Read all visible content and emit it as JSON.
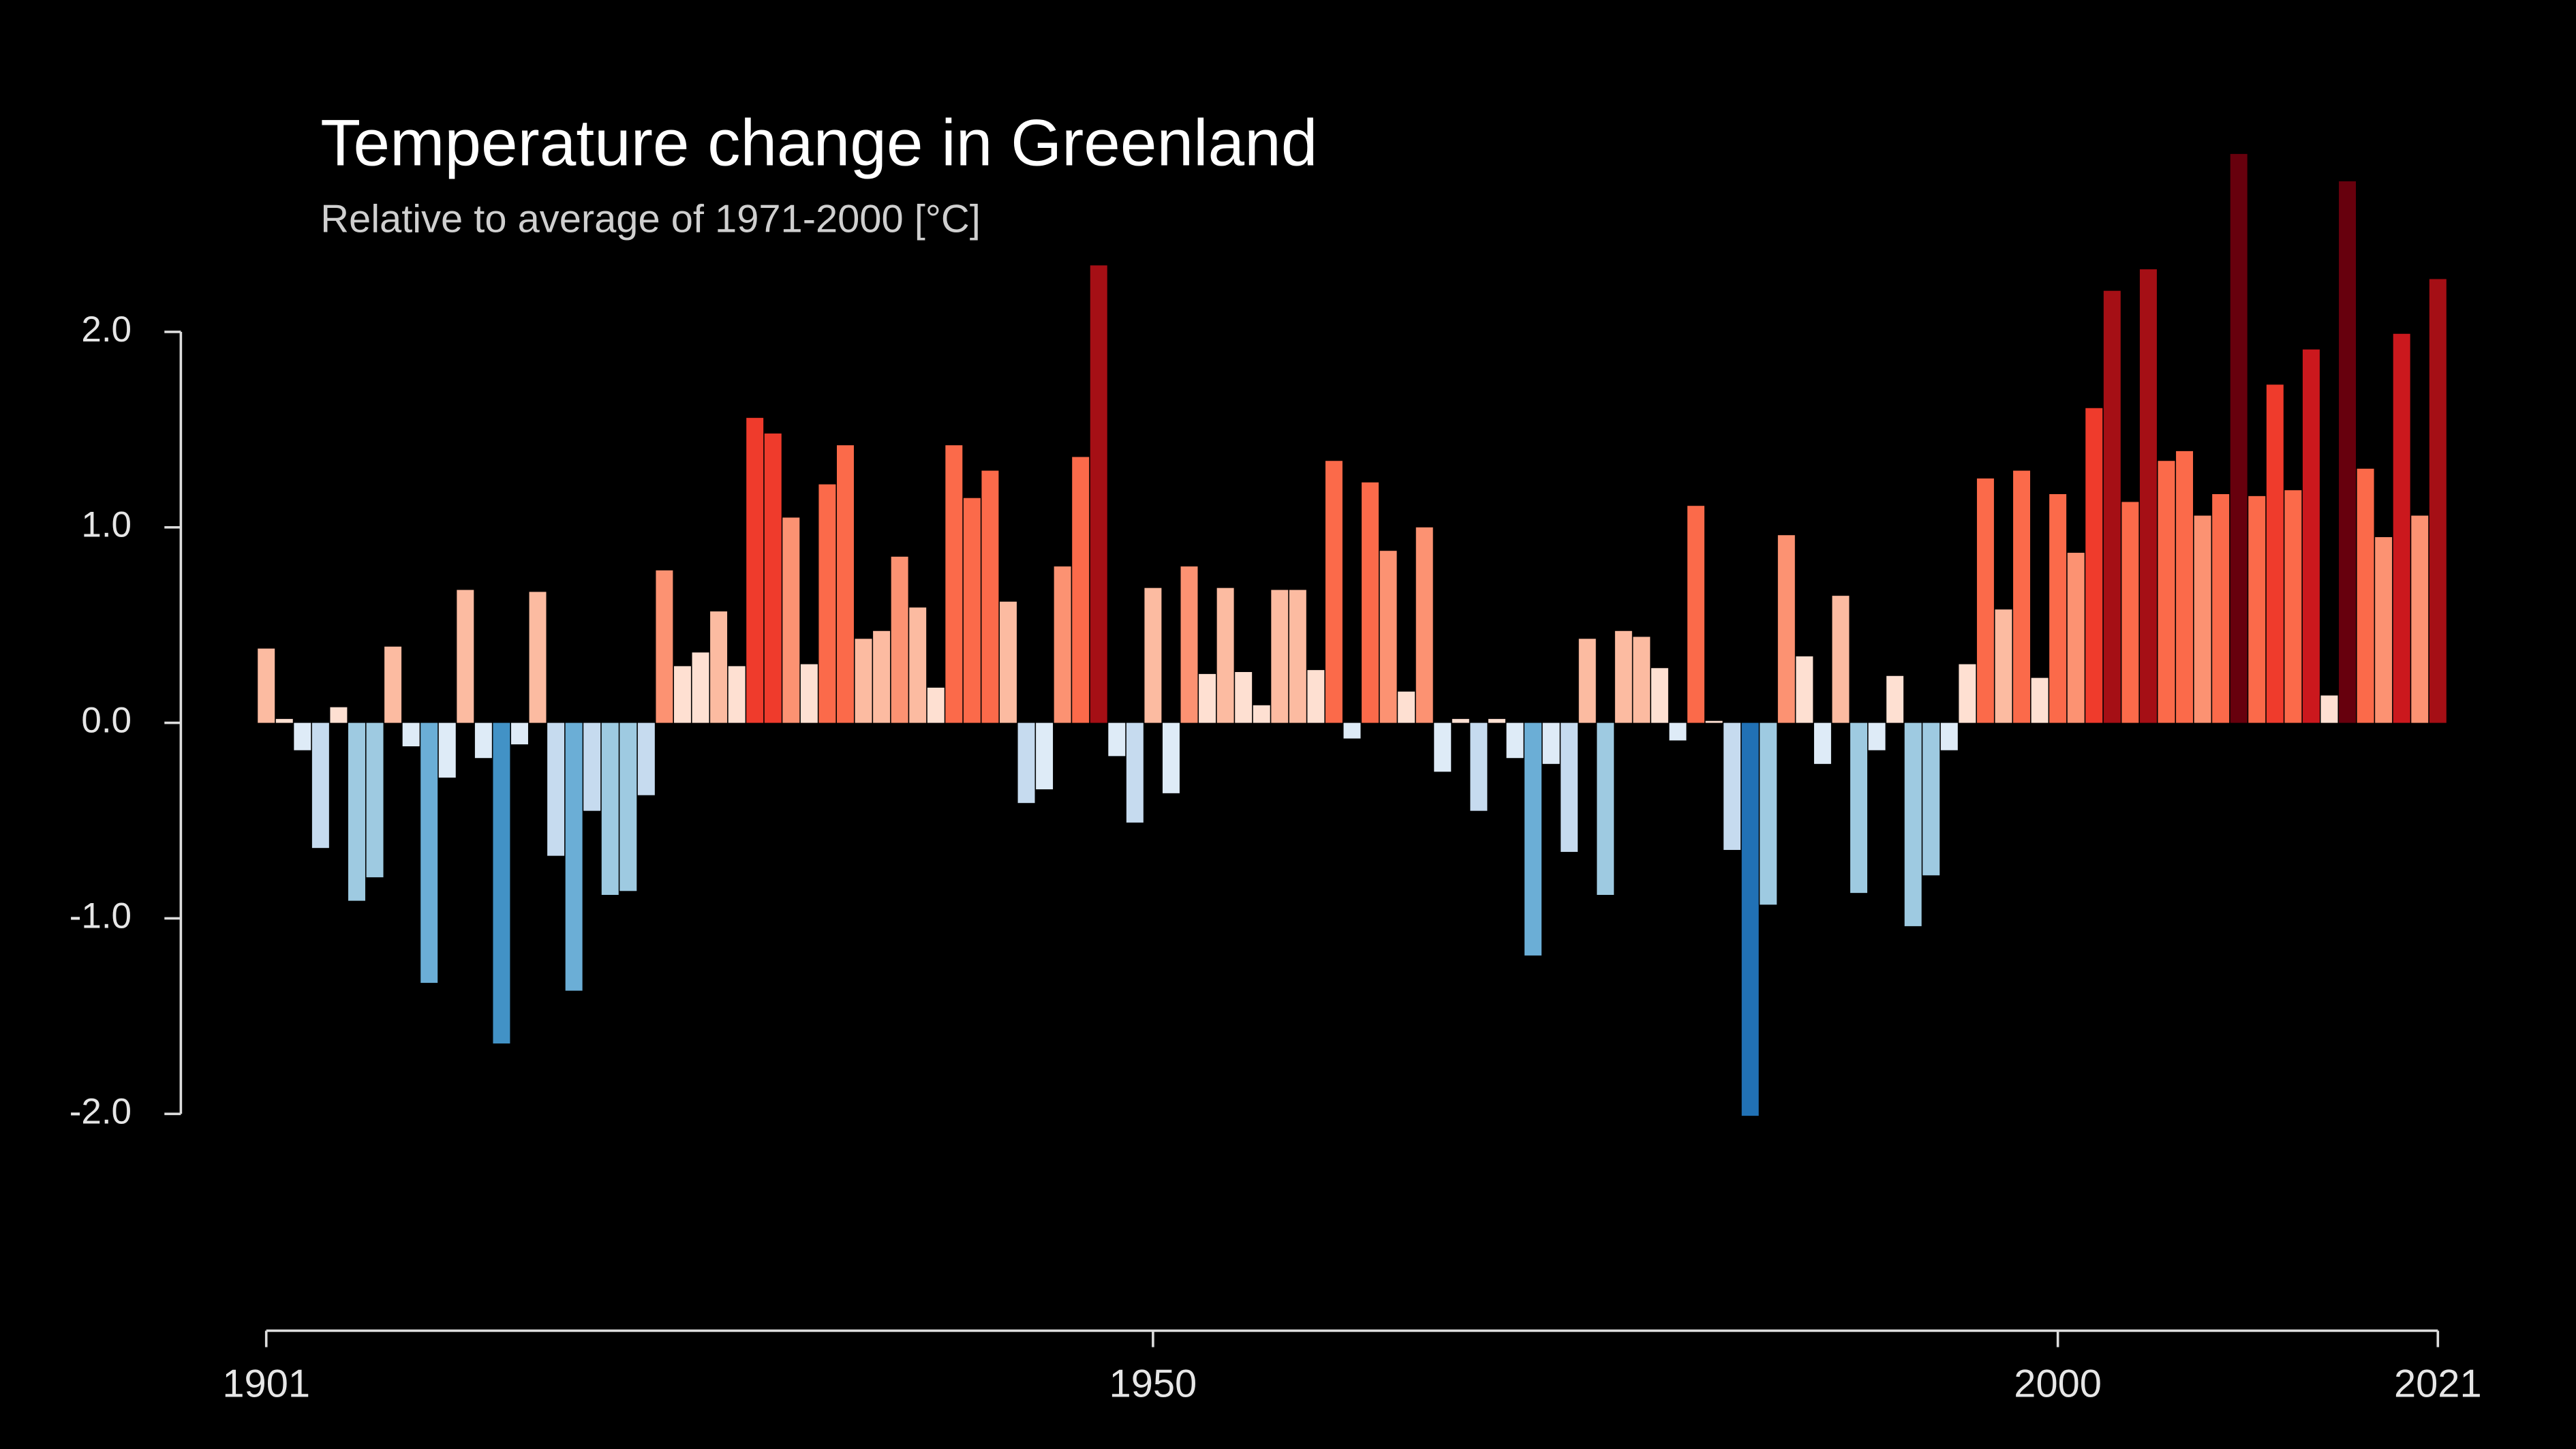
{
  "chart_data": {
    "type": "bar",
    "title": "Temperature change in Greenland",
    "subtitle": "Relative to average of 1971-2000  [°C]",
    "x": [
      1901,
      1902,
      1903,
      1904,
      1905,
      1906,
      1907,
      1908,
      1909,
      1910,
      1911,
      1912,
      1913,
      1914,
      1915,
      1916,
      1917,
      1918,
      1919,
      1920,
      1921,
      1922,
      1923,
      1924,
      1925,
      1926,
      1927,
      1928,
      1929,
      1930,
      1931,
      1932,
      1933,
      1934,
      1935,
      1936,
      1937,
      1938,
      1939,
      1940,
      1941,
      1942,
      1943,
      1944,
      1945,
      1946,
      1947,
      1948,
      1949,
      1950,
      1951,
      1952,
      1953,
      1954,
      1955,
      1956,
      1957,
      1958,
      1959,
      1960,
      1961,
      1962,
      1963,
      1964,
      1965,
      1966,
      1967,
      1968,
      1969,
      1970,
      1971,
      1972,
      1973,
      1974,
      1975,
      1976,
      1977,
      1978,
      1979,
      1980,
      1981,
      1982,
      1983,
      1984,
      1985,
      1986,
      1987,
      1988,
      1989,
      1990,
      1991,
      1992,
      1993,
      1994,
      1995,
      1996,
      1997,
      1998,
      1999,
      2000,
      2001,
      2002,
      2003,
      2004,
      2005,
      2006,
      2007,
      2008,
      2009,
      2010,
      2011,
      2012,
      2013,
      2014,
      2015,
      2016,
      2017,
      2018,
      2019,
      2020,
      2021
    ],
    "values": [
      0.38,
      0.02,
      -0.14,
      -0.64,
      0.08,
      -0.91,
      -0.79,
      0.39,
      -0.12,
      -1.33,
      -0.28,
      0.68,
      -0.18,
      -1.64,
      -0.11,
      0.67,
      -0.68,
      -1.37,
      -0.45,
      -0.88,
      -0.86,
      -0.37,
      0.78,
      0.29,
      0.36,
      0.57,
      0.29,
      1.56,
      1.48,
      1.05,
      0.3,
      1.22,
      1.42,
      0.43,
      0.47,
      0.85,
      0.59,
      0.18,
      1.42,
      1.15,
      1.29,
      0.62,
      -0.41,
      -0.34,
      0.8,
      1.36,
      2.34,
      -0.17,
      -0.51,
      0.69,
      -0.36,
      0.8,
      0.25,
      0.69,
      0.26,
      0.09,
      0.68,
      0.68,
      0.27,
      1.34,
      -0.08,
      1.23,
      0.88,
      0.16,
      1.0,
      -0.25,
      0.02,
      -0.45,
      0.02,
      -0.18,
      -1.19,
      -0.21,
      -0.66,
      0.43,
      -0.88,
      0.47,
      0.44,
      0.28,
      -0.09,
      1.11,
      0.01,
      -0.65,
      -2.01,
      -0.93,
      0.96,
      0.34,
      -0.21,
      0.65,
      -0.87,
      -0.14,
      0.24,
      -1.04,
      -0.78,
      -0.14,
      0.3,
      1.25,
      0.58,
      1.29,
      0.23,
      1.17,
      0.87,
      1.61,
      2.21,
      1.13,
      2.32,
      1.34,
      1.39,
      1.06,
      1.17,
      2.91,
      1.16,
      1.73,
      1.19,
      1.91,
      0.14,
      2.77,
      1.3,
      0.95,
      1.99,
      1.06,
      2.27
    ],
    "palette": [
      "#08306b",
      "#08519c",
      "#2171b5",
      "#4292c6",
      "#6baed6",
      "#9ecae1",
      "#c6dbef",
      "#deebf7",
      "#fee0d2",
      "#fcbba1",
      "#fc9272",
      "#fb6a4a",
      "#ef3b2c",
      "#cb181d",
      "#a50f15",
      "#67000d"
    ],
    "xlim": [
      1901,
      2021
    ],
    "xticks": [
      1901,
      1950,
      2000,
      2021
    ],
    "ylim": [
      -3.1,
      3.0
    ],
    "yticks": [
      {
        "value": -2,
        "label": "-2.0"
      },
      {
        "value": -1,
        "label": "-1.0"
      },
      {
        "value": 0,
        "label": "0.0"
      },
      {
        "value": 1,
        "label": "1.0"
      },
      {
        "value": 2,
        "label": "2.0"
      }
    ]
  }
}
